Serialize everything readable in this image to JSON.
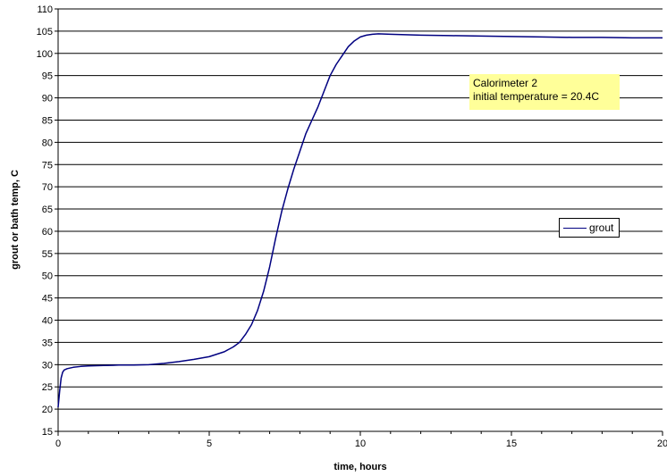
{
  "chart_data": {
    "type": "line",
    "title": "",
    "xlabel": "time, hours",
    "ylabel": "grout or bath temp, C",
    "xlim": [
      0,
      20
    ],
    "ylim": [
      15,
      110
    ],
    "x_ticks": [
      0,
      5,
      10,
      15,
      20
    ],
    "y_ticks": [
      15,
      20,
      25,
      30,
      35,
      40,
      45,
      50,
      55,
      60,
      65,
      70,
      75,
      80,
      85,
      90,
      95,
      100,
      105,
      110
    ],
    "grid": "horizontal",
    "legend_position": "right",
    "annotation": {
      "line1": "Calorimeter 2",
      "line2": "initial temperature = 20.4C"
    },
    "series": [
      {
        "name": "grout",
        "color": "#000080",
        "x": [
          0,
          0.05,
          0.1,
          0.15,
          0.2,
          0.3,
          0.5,
          0.75,
          1.0,
          1.5,
          2.0,
          2.5,
          3.0,
          3.5,
          4.0,
          4.5,
          5.0,
          5.5,
          5.8,
          6.0,
          6.2,
          6.4,
          6.6,
          6.8,
          7.0,
          7.2,
          7.4,
          7.6,
          7.8,
          8.0,
          8.2,
          8.4,
          8.6,
          8.8,
          9.0,
          9.2,
          9.4,
          9.6,
          9.8,
          10.0,
          10.2,
          10.4,
          10.6,
          11.0,
          11.5,
          12.0,
          13.0,
          14.0,
          15.0,
          16.0,
          17.0,
          18.0,
          19.0,
          20.0
        ],
        "y": [
          20.4,
          24.0,
          27.0,
          28.3,
          28.8,
          29.1,
          29.4,
          29.6,
          29.7,
          29.8,
          29.9,
          29.9,
          30.0,
          30.3,
          30.7,
          31.2,
          31.8,
          32.9,
          34.0,
          35.0,
          36.8,
          39.0,
          42.2,
          46.5,
          52.0,
          58.5,
          64.5,
          69.5,
          74.0,
          78.0,
          82.0,
          85.0,
          88.0,
          91.5,
          95.0,
          97.5,
          99.5,
          101.5,
          102.8,
          103.7,
          104.1,
          104.3,
          104.4,
          104.3,
          104.2,
          104.1,
          104.0,
          103.9,
          103.8,
          103.7,
          103.6,
          103.6,
          103.5,
          103.5
        ]
      }
    ]
  }
}
